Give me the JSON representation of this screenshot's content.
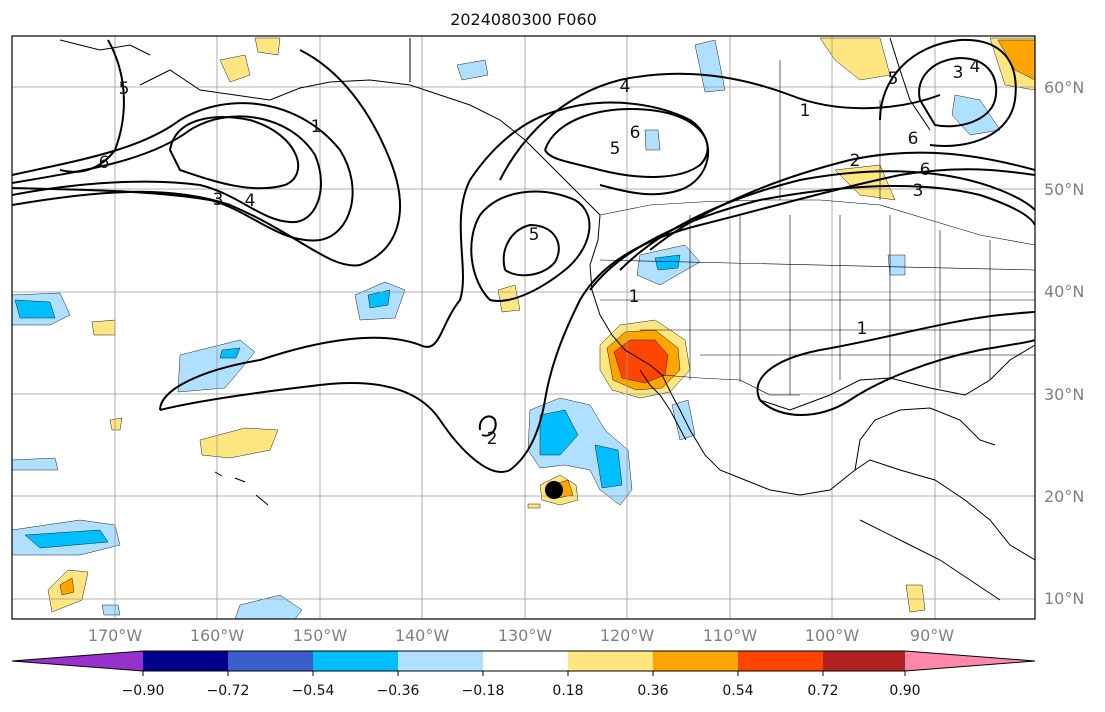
{
  "title": "2024080300 F060",
  "lat_labels": [
    "60°N",
    "50°N",
    "40°N",
    "30°N",
    "20°N",
    "10°N"
  ],
  "lon_labels": [
    "170°W",
    "160°W",
    "150°W",
    "140°W",
    "130°W",
    "120°W",
    "110°W",
    "100°W",
    "90°W"
  ],
  "colorbar": {
    "tick_labels": [
      "−0.90",
      "−0.72",
      "−0.54",
      "−0.36",
      "−0.18",
      "0.18",
      "0.36",
      "0.54",
      "0.72",
      "0.90"
    ],
    "colors": [
      "#9932cc",
      "#00008b",
      "#3a5fcd",
      "#00bfff",
      "#b0e0ff",
      "#ffffff",
      "#ffe680",
      "#ffa500",
      "#ff4500",
      "#b22222",
      "#ff88aa"
    ]
  },
  "contour_labels": [
    "5",
    "6",
    "3",
    "4",
    "1",
    "5",
    "4",
    "5",
    "6",
    "2",
    "1",
    "1",
    "6",
    "3",
    "6",
    "4",
    "3",
    "5",
    "2",
    "1"
  ],
  "map": {
    "extent": {
      "lon_min": "180°W",
      "lon_max": "80°W",
      "lat_min": "8°N",
      "lat_max": "65°N"
    },
    "storm_marker": "black-dot"
  }
}
